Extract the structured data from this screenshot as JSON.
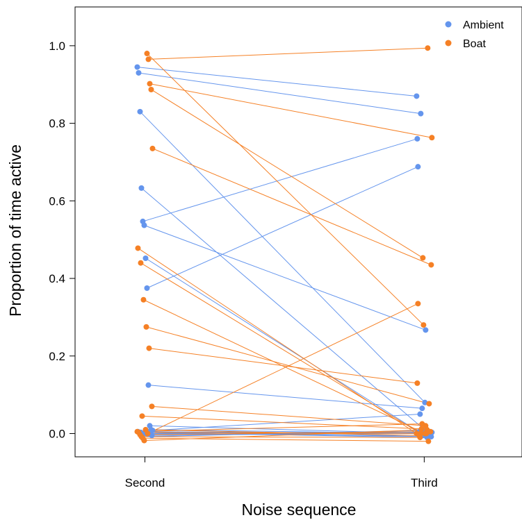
{
  "chart_data": {
    "type": "line",
    "xlabel": "Noise sequence",
    "ylabel": "Proportion of time active",
    "categories": [
      "Second",
      "Third"
    ],
    "xlim": [
      0.75,
      2.35
    ],
    "ylim": [
      -0.06,
      1.1
    ],
    "yticks": [
      0.0,
      0.2,
      0.4,
      0.6,
      0.8,
      1.0
    ],
    "ytick_labels": [
      "0.0",
      "0.2",
      "0.4",
      "0.6",
      "0.8",
      "1.0"
    ],
    "grid": false,
    "legend_position": "top-right",
    "colors": {
      "Ambient": "#6495ED",
      "Boat": "#F58025"
    },
    "series": [
      {
        "name": "Ambient",
        "pairs": [
          [
            0.945,
            0.87
          ],
          [
            0.93,
            0.825
          ],
          [
            0.83,
            0.08
          ],
          [
            0.633,
            0.0
          ],
          [
            0.547,
            0.76
          ],
          [
            0.537,
            0.267
          ],
          [
            0.452,
            0.0
          ],
          [
            0.375,
            0.688
          ],
          [
            0.125,
            0.065
          ],
          [
            0.02,
            0.0
          ],
          [
            0.01,
            0.0
          ],
          [
            0.008,
            0.05
          ],
          [
            0.005,
            0.0
          ],
          [
            0.003,
            -0.01
          ],
          [
            0.0,
            0.005
          ],
          [
            0.0,
            -0.005
          ],
          [
            -0.002,
            0.0
          ],
          [
            -0.005,
            0.003
          ],
          [
            -0.008,
            0.008
          ],
          [
            0.005,
            -0.008
          ]
        ]
      },
      {
        "name": "Boat",
        "pairs": [
          [
            0.98,
            0.28
          ],
          [
            0.965,
            0.994
          ],
          [
            0.902,
            0.763
          ],
          [
            0.887,
            0.453
          ],
          [
            0.735,
            0.435
          ],
          [
            0.478,
            0.0
          ],
          [
            0.44,
            0.0
          ],
          [
            0.345,
            0.0
          ],
          [
            0.275,
            0.077
          ],
          [
            0.22,
            0.13
          ],
          [
            0.07,
            0.02
          ],
          [
            0.045,
            0.012
          ],
          [
            0.0,
            0.335
          ],
          [
            0.005,
            0.025
          ],
          [
            0.003,
            0.0
          ],
          [
            -0.003,
            0.005
          ],
          [
            -0.008,
            -0.01
          ],
          [
            -0.012,
            -0.02
          ],
          [
            -0.018,
            0.01
          ],
          [
            0.01,
            -0.005
          ]
        ]
      }
    ]
  }
}
